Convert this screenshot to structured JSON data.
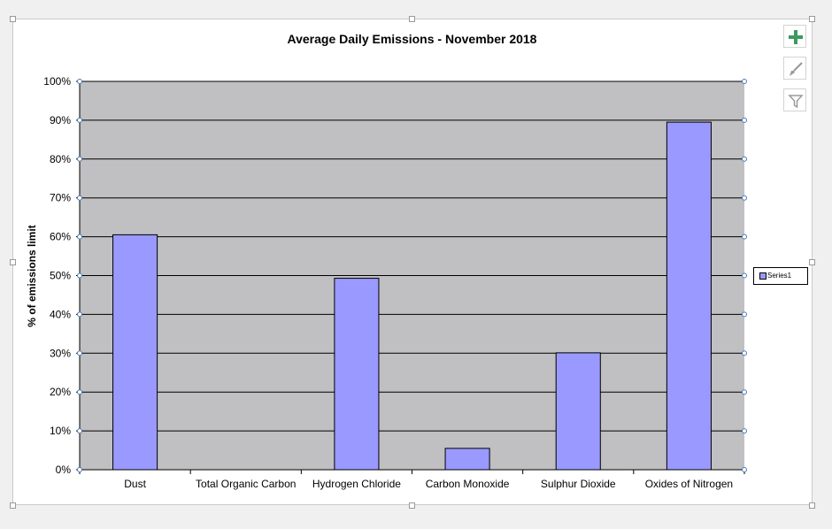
{
  "chart_data": {
    "type": "bar",
    "title": "Average Daily Emissions - November 2018",
    "xlabel": "",
    "ylabel": "% of emissions limit",
    "categories": [
      "Dust",
      "Total Organic Carbon",
      "Hydrogen Chloride",
      "Carbon Monoxide",
      "Sulphur Dioxide",
      "Oxides of Nitrogen"
    ],
    "series": [
      {
        "name": "Series1",
        "values": [
          60.5,
          0,
          49.3,
          5.5,
          30.1,
          89.5
        ]
      }
    ],
    "ylim": [
      0,
      100
    ],
    "yticks": [
      0,
      10,
      20,
      30,
      40,
      50,
      60,
      70,
      80,
      90,
      100
    ],
    "ytick_labels": [
      "0%",
      "10%",
      "20%",
      "30%",
      "40%",
      "50%",
      "60%",
      "70%",
      "80%",
      "90%",
      "100%"
    ],
    "grid": true,
    "legend_position": "right",
    "colors": {
      "bar": "#9999ff",
      "plot_bg": "#c0bfc1",
      "bar_edge": "#000000"
    }
  },
  "toolbar": {
    "buttons": [
      {
        "name": "chart-elements-button",
        "icon": "plus-icon"
      },
      {
        "name": "chart-styles-button",
        "icon": "brush-icon"
      },
      {
        "name": "chart-filters-button",
        "icon": "funnel-icon"
      }
    ]
  }
}
